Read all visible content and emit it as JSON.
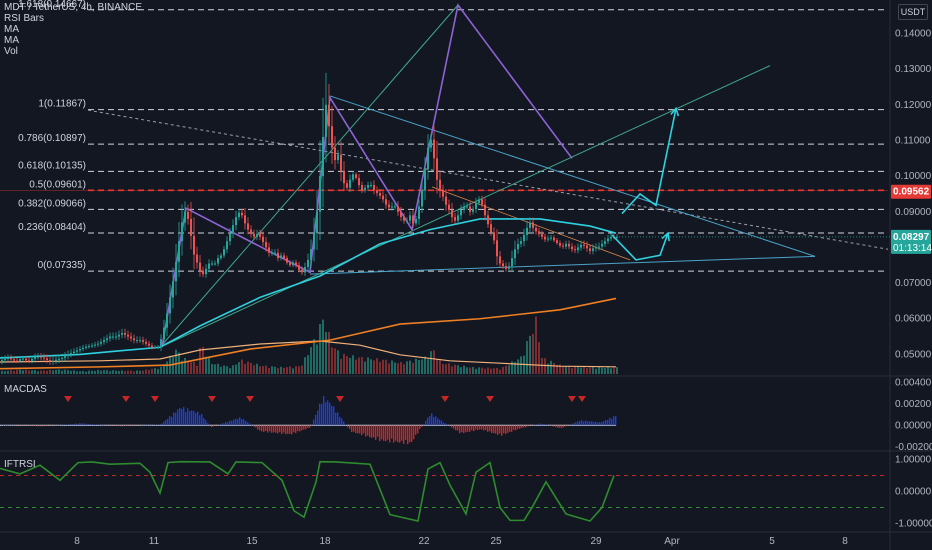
{
  "header": {
    "symbol_line": "MDT / TetherUS, 4h, BINANCE",
    "indicators": [
      "RSI Bars",
      "MA",
      "MA",
      "Vol"
    ],
    "currency": "USDT"
  },
  "panels": {
    "macd_label": "MACDAS",
    "iftrsi_label": "IFTRSI"
  },
  "price_badges": {
    "red_price": "0.09562",
    "current_price": "0.08297",
    "countdown": "01:13:14"
  },
  "colors": {
    "background": "#131722",
    "up": "#26a69a",
    "down": "#ef5350",
    "accent_cyan": "#2ed1e0",
    "purple": "#8e63d6",
    "orange": "#ef7f23",
    "ma_light": "#f0b17b",
    "macd_up": "#1f3fd1",
    "macd_down": "#c62828",
    "iftrsi": "#2e8b2e",
    "fib_red": "#e53935",
    "teal_line": "#4aa3c8",
    "green_line": "#3fa68a",
    "grid": "#1e222d"
  },
  "chart_data": {
    "type": "candlestick",
    "x_tick_labels": [
      "8",
      "11",
      "15",
      "18",
      "22",
      "25",
      "29",
      "Apr",
      "5",
      "8"
    ],
    "price_axis": {
      "ticks": [
        "0.14000",
        "0.13000",
        "0.12000",
        "0.11000",
        "0.10000",
        "0.09000",
        "0.08000",
        "0.07000",
        "0.06000",
        "0.05000"
      ],
      "ylim": [
        0.0445,
        0.148
      ]
    },
    "fib_levels": [
      {
        "label": "1.618(0.14667)",
        "value": 0.14667
      },
      {
        "label": "1(0.11867)",
        "value": 0.11867
      },
      {
        "label": "0.786(0.10897)",
        "value": 0.10897
      },
      {
        "label": "0.618(0.10135)",
        "value": 0.10135
      },
      {
        "label": "0.5(0.09601)",
        "value": 0.09601
      },
      {
        "label": "0.382(0.09066)",
        "value": 0.09066
      },
      {
        "label": "0.236(0.08404)",
        "value": 0.08404
      },
      {
        "label": "0(0.07335)",
        "value": 0.07335
      }
    ],
    "price_path": [
      [
        0,
        0.048
      ],
      [
        10,
        0.049
      ],
      [
        18,
        0.048
      ],
      [
        24,
        0.049
      ],
      [
        30,
        0.048
      ],
      [
        38,
        0.0495
      ],
      [
        45,
        0.049
      ],
      [
        52,
        0.048
      ],
      [
        58,
        0.0485
      ],
      [
        64,
        0.049
      ],
      [
        70,
        0.05
      ],
      [
        78,
        0.051
      ],
      [
        86,
        0.052
      ],
      [
        94,
        0.0525
      ],
      [
        100,
        0.053
      ],
      [
        106,
        0.054
      ],
      [
        112,
        0.055
      ],
      [
        118,
        0.055
      ],
      [
        124,
        0.056
      ],
      [
        130,
        0.055
      ],
      [
        136,
        0.054
      ],
      [
        142,
        0.054
      ],
      [
        148,
        0.053
      ],
      [
        154,
        0.052
      ],
      [
        160,
        0.052
      ],
      [
        164,
        0.055
      ],
      [
        168,
        0.06
      ],
      [
        172,
        0.066
      ],
      [
        176,
        0.072
      ],
      [
        180,
        0.08
      ],
      [
        184,
        0.087
      ],
      [
        188,
        0.091
      ],
      [
        192,
        0.085
      ],
      [
        196,
        0.078
      ],
      [
        200,
        0.075
      ],
      [
        204,
        0.072
      ],
      [
        208,
        0.074
      ],
      [
        212,
        0.076
      ],
      [
        216,
        0.075
      ],
      [
        220,
        0.077
      ],
      [
        224,
        0.078
      ],
      [
        228,
        0.081
      ],
      [
        232,
        0.084
      ],
      [
        236,
        0.087
      ],
      [
        240,
        0.09
      ],
      [
        244,
        0.089
      ],
      [
        248,
        0.086
      ],
      [
        252,
        0.084
      ],
      [
        256,
        0.083
      ],
      [
        260,
        0.084
      ],
      [
        264,
        0.082
      ],
      [
        268,
        0.08
      ],
      [
        272,
        0.078
      ],
      [
        276,
        0.079
      ],
      [
        280,
        0.077
      ],
      [
        284,
        0.078
      ],
      [
        288,
        0.076
      ],
      [
        292,
        0.075
      ],
      [
        296,
        0.076
      ],
      [
        300,
        0.074
      ],
      [
        304,
        0.073
      ],
      [
        308,
        0.075
      ],
      [
        312,
        0.078
      ],
      [
        316,
        0.084
      ],
      [
        320,
        0.092
      ],
      [
        324,
        0.108
      ],
      [
        328,
        0.12
      ],
      [
        332,
        0.112
      ],
      [
        336,
        0.104
      ],
      [
        340,
        0.106
      ],
      [
        344,
        0.1
      ],
      [
        348,
        0.096
      ],
      [
        352,
        0.099
      ],
      [
        356,
        0.101
      ],
      [
        360,
        0.098
      ],
      [
        364,
        0.096
      ],
      [
        368,
        0.097
      ],
      [
        372,
        0.098
      ],
      [
        376,
        0.096
      ],
      [
        380,
        0.095
      ],
      [
        384,
        0.094
      ],
      [
        388,
        0.092
      ],
      [
        392,
        0.091
      ],
      [
        396,
        0.092
      ],
      [
        400,
        0.09
      ],
      [
        404,
        0.088
      ],
      [
        408,
        0.087
      ],
      [
        412,
        0.089
      ],
      [
        416,
        0.086
      ],
      [
        420,
        0.09
      ],
      [
        424,
        0.096
      ],
      [
        428,
        0.104
      ],
      [
        432,
        0.112
      ],
      [
        436,
        0.105
      ],
      [
        440,
        0.097
      ],
      [
        444,
        0.095
      ],
      [
        448,
        0.092
      ],
      [
        452,
        0.09
      ],
      [
        456,
        0.087
      ],
      [
        460,
        0.089
      ],
      [
        464,
        0.091
      ],
      [
        468,
        0.092
      ],
      [
        472,
        0.09
      ],
      [
        476,
        0.091
      ],
      [
        480,
        0.094
      ],
      [
        484,
        0.092
      ],
      [
        488,
        0.088
      ],
      [
        492,
        0.085
      ],
      [
        496,
        0.082
      ],
      [
        500,
        0.076
      ],
      [
        504,
        0.075
      ],
      [
        508,
        0.074
      ],
      [
        512,
        0.075
      ],
      [
        516,
        0.079
      ],
      [
        520,
        0.081
      ],
      [
        524,
        0.082
      ],
      [
        528,
        0.085
      ],
      [
        532,
        0.087
      ],
      [
        536,
        0.085
      ],
      [
        540,
        0.084
      ],
      [
        544,
        0.083
      ],
      [
        548,
        0.082
      ],
      [
        552,
        0.083
      ],
      [
        556,
        0.082
      ],
      [
        560,
        0.081
      ],
      [
        564,
        0.08
      ],
      [
        568,
        0.081
      ],
      [
        572,
        0.08
      ],
      [
        576,
        0.079
      ],
      [
        580,
        0.08
      ],
      [
        584,
        0.081
      ],
      [
        588,
        0.08
      ],
      [
        592,
        0.079
      ],
      [
        596,
        0.08
      ],
      [
        600,
        0.08
      ],
      [
        604,
        0.081
      ],
      [
        608,
        0.082
      ],
      [
        612,
        0.083
      ],
      [
        616,
        0.08297
      ]
    ],
    "ma_slow": [
      [
        0,
        0.046
      ],
      [
        100,
        0.0465
      ],
      [
        170,
        0.047
      ],
      [
        250,
        0.0515
      ],
      [
        330,
        0.054
      ],
      [
        400,
        0.0585
      ],
      [
        480,
        0.06
      ],
      [
        560,
        0.0625
      ],
      [
        616,
        0.0657
      ]
    ],
    "ma_fast": [
      [
        0,
        0.049
      ],
      [
        80,
        0.05
      ],
      [
        160,
        0.052
      ],
      [
        200,
        0.058
      ],
      [
        260,
        0.066
      ],
      [
        320,
        0.072
      ],
      [
        380,
        0.081
      ],
      [
        430,
        0.085
      ],
      [
        480,
        0.088
      ],
      [
        540,
        0.088
      ],
      [
        590,
        0.086
      ],
      [
        616,
        0.084
      ]
    ],
    "volume_path": [
      [
        0,
        0.05
      ],
      [
        20,
        0.08
      ],
      [
        40,
        0.06
      ],
      [
        60,
        0.08
      ],
      [
        80,
        0.05
      ],
      [
        100,
        0.07
      ],
      [
        120,
        0.06
      ],
      [
        140,
        0.06
      ],
      [
        160,
        0.12
      ],
      [
        176,
        0.45
      ],
      [
        180,
        0.3
      ],
      [
        196,
        0.18
      ],
      [
        200,
        0.55
      ],
      [
        210,
        0.2
      ],
      [
        230,
        0.12
      ],
      [
        240,
        0.25
      ],
      [
        260,
        0.15
      ],
      [
        280,
        0.12
      ],
      [
        300,
        0.14
      ],
      [
        316,
        0.7
      ],
      [
        322,
        1.0
      ],
      [
        326,
        0.8
      ],
      [
        332,
        0.5
      ],
      [
        340,
        0.35
      ],
      [
        356,
        0.3
      ],
      [
        384,
        0.25
      ],
      [
        400,
        0.2
      ],
      [
        426,
        0.3
      ],
      [
        432,
        0.45
      ],
      [
        440,
        0.2
      ],
      [
        470,
        0.12
      ],
      [
        500,
        0.1
      ],
      [
        520,
        0.3
      ],
      [
        536,
        1.0
      ],
      [
        540,
        0.3
      ],
      [
        560,
        0.15
      ],
      [
        590,
        0.12
      ],
      [
        616,
        0.12
      ]
    ],
    "ma_volume": [
      [
        0,
        0.2
      ],
      [
        100,
        0.22
      ],
      [
        160,
        0.25
      ],
      [
        200,
        0.4
      ],
      [
        260,
        0.5
      ],
      [
        320,
        0.55
      ],
      [
        360,
        0.48
      ],
      [
        400,
        0.32
      ],
      [
        450,
        0.22
      ],
      [
        500,
        0.18
      ],
      [
        560,
        0.13
      ],
      [
        616,
        0.12
      ]
    ],
    "macd_path": [
      [
        0,
        5e-05
      ],
      [
        40,
        -0.0001
      ],
      [
        80,
        0.0002
      ],
      [
        120,
        -0.0001
      ],
      [
        160,
        0.0001
      ],
      [
        180,
        0.0018
      ],
      [
        200,
        0.0012
      ],
      [
        210,
        -0.0002
      ],
      [
        240,
        0.0008
      ],
      [
        260,
        -0.0006
      ],
      [
        290,
        -0.0009
      ],
      [
        310,
        -0.0002
      ],
      [
        322,
        0.0028
      ],
      [
        330,
        0.0022
      ],
      [
        350,
        -0.0006
      ],
      [
        380,
        -0.0015
      ],
      [
        410,
        -0.0018
      ],
      [
        430,
        0.0012
      ],
      [
        440,
        0.0005
      ],
      [
        460,
        -0.0008
      ],
      [
        480,
        -0.0004
      ],
      [
        500,
        -0.001
      ],
      [
        520,
        -0.0003
      ],
      [
        540,
        0.0002
      ],
      [
        560,
        -0.0003
      ],
      [
        580,
        0.0005
      ],
      [
        600,
        0.0003
      ],
      [
        616,
        0.001
      ]
    ],
    "macd_axis": {
      "ticks": [
        "0.00400",
        "0.00200",
        "0.00000",
        "-0.00200"
      ],
      "ylim": [
        -0.0022,
        0.0044
      ]
    },
    "macd_markers": [
      68,
      126,
      155,
      212,
      250,
      340,
      445,
      490,
      572,
      582
    ],
    "iftrsi_path": [
      [
        0,
        0.72
      ],
      [
        20,
        0.55
      ],
      [
        40,
        0.82
      ],
      [
        60,
        0.35
      ],
      [
        78,
        0.9
      ],
      [
        92,
        0.92
      ],
      [
        110,
        0.85
      ],
      [
        140,
        0.88
      ],
      [
        150,
        0.6
      ],
      [
        160,
        -0.05
      ],
      [
        168,
        0.9
      ],
      [
        180,
        0.93
      ],
      [
        210,
        0.92
      ],
      [
        228,
        0.55
      ],
      [
        236,
        0.92
      ],
      [
        262,
        0.9
      ],
      [
        282,
        0.35
      ],
      [
        294,
        -0.6
      ],
      [
        304,
        -0.8
      ],
      [
        316,
        0.3
      ],
      [
        320,
        0.93
      ],
      [
        336,
        0.92
      ],
      [
        370,
        0.85
      ],
      [
        390,
        -0.72
      ],
      [
        418,
        -0.92
      ],
      [
        428,
        0.7
      ],
      [
        440,
        0.9
      ],
      [
        450,
        0.2
      ],
      [
        466,
        -0.7
      ],
      [
        476,
        0.6
      ],
      [
        490,
        0.9
      ],
      [
        500,
        -0.5
      ],
      [
        510,
        -0.9
      ],
      [
        524,
        -0.9
      ],
      [
        532,
        -0.5
      ],
      [
        546,
        0.3
      ],
      [
        556,
        -0.2
      ],
      [
        566,
        -0.7
      ],
      [
        590,
        -0.92
      ],
      [
        602,
        -0.5
      ],
      [
        614,
        0.5
      ]
    ],
    "iftrsi_axis": {
      "ticks": [
        "1.00000",
        "0.00000",
        "-1.00000"
      ],
      "ylim": [
        -1.2,
        1.2
      ],
      "dashed": [
        0.5,
        -0.5
      ]
    }
  }
}
